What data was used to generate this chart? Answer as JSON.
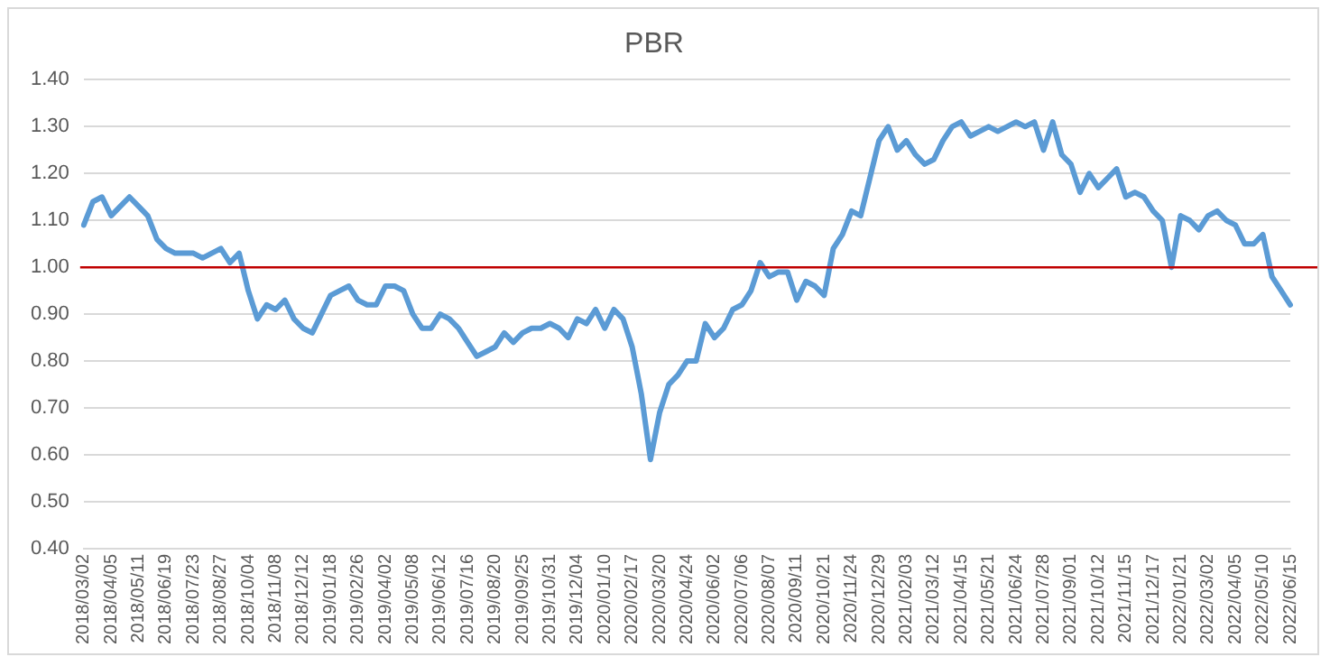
{
  "chart_data": {
    "type": "line",
    "title": "PBR",
    "categories": [
      "2018/03/02",
      null,
      null,
      "2018/04/05",
      null,
      null,
      "2018/05/11",
      null,
      null,
      "2018/06/19",
      null,
      null,
      "2018/07/23",
      null,
      null,
      "2018/08/27",
      null,
      null,
      "2018/10/04",
      null,
      null,
      "2018/11/08",
      null,
      null,
      "2018/12/12",
      null,
      null,
      "2019/01/18",
      null,
      null,
      "2019/02/26",
      null,
      null,
      "2019/04/02",
      null,
      null,
      "2019/05/08",
      null,
      null,
      "2019/06/12",
      null,
      null,
      "2019/07/16",
      null,
      null,
      "2019/08/20",
      null,
      null,
      "2019/09/25",
      null,
      null,
      "2019/10/31",
      null,
      null,
      "2019/12/04",
      null,
      null,
      "2020/01/10",
      null,
      null,
      "2020/02/17",
      null,
      null,
      "2020/03/20",
      null,
      null,
      "2020/04/24",
      null,
      null,
      "2020/06/02",
      null,
      null,
      "2020/07/06",
      null,
      null,
      "2020/08/07",
      null,
      null,
      "2020/09/11",
      null,
      null,
      "2020/10/21",
      null,
      null,
      "2020/11/24",
      null,
      null,
      "2020/12/29",
      null,
      null,
      "2021/02/03",
      null,
      null,
      "2021/03/12",
      null,
      null,
      "2021/04/15",
      null,
      null,
      "2021/05/21",
      null,
      null,
      "2021/06/24",
      null,
      null,
      "2021/07/28",
      null,
      null,
      "2021/09/01",
      null,
      null,
      "2021/10/12",
      null,
      null,
      "2021/11/15",
      null,
      null,
      "2021/12/17",
      null,
      null,
      "2022/01/21",
      null,
      null,
      "2022/03/02",
      null,
      null,
      "2022/04/05",
      null,
      null,
      "2022/05/10",
      null,
      null,
      "2022/06/15"
    ],
    "series": [
      {
        "color": "#5b9bd5",
        "values": [
          1.09,
          1.14,
          1.15,
          1.11,
          1.13,
          1.15,
          1.13,
          1.11,
          1.06,
          1.04,
          1.03,
          1.03,
          1.03,
          1.02,
          1.03,
          1.04,
          1.01,
          1.03,
          0.95,
          0.89,
          0.92,
          0.91,
          0.93,
          0.89,
          0.87,
          0.86,
          0.9,
          0.94,
          0.95,
          0.96,
          0.93,
          0.92,
          0.92,
          0.96,
          0.96,
          0.95,
          0.9,
          0.87,
          0.87,
          0.9,
          0.89,
          0.87,
          0.84,
          0.81,
          0.82,
          0.83,
          0.86,
          0.84,
          0.86,
          0.87,
          0.87,
          0.88,
          0.87,
          0.85,
          0.89,
          0.88,
          0.91,
          0.87,
          0.91,
          0.89,
          0.83,
          0.73,
          0.59,
          0.69,
          0.75,
          0.77,
          0.8,
          0.8,
          0.88,
          0.85,
          0.87,
          0.91,
          0.92,
          0.95,
          1.01,
          0.98,
          0.99,
          0.99,
          0.93,
          0.97,
          0.96,
          0.94,
          1.04,
          1.07,
          1.12,
          1.11,
          1.19,
          1.27,
          1.3,
          1.25,
          1.27,
          1.24,
          1.22,
          1.23,
          1.27,
          1.3,
          1.31,
          1.28,
          1.29,
          1.3,
          1.29,
          1.3,
          1.31,
          1.3,
          1.31,
          1.25,
          1.31,
          1.24,
          1.22,
          1.16,
          1.2,
          1.17,
          1.19,
          1.21,
          1.15,
          1.16,
          1.15,
          1.12,
          1.1,
          1.0,
          1.11,
          1.1,
          1.08,
          1.11,
          1.12,
          1.1,
          1.09,
          1.05,
          1.05,
          1.07,
          0.98,
          0.95,
          0.92
        ]
      }
    ],
    "ylim": [
      0.4,
      1.4
    ],
    "yticks": [
      {
        "value": 0.4,
        "label": "0.40"
      },
      {
        "value": 0.5,
        "label": "0.50"
      },
      {
        "value": 0.6,
        "label": "0.60"
      },
      {
        "value": 0.7,
        "label": "0.70"
      },
      {
        "value": 0.8,
        "label": "0.80"
      },
      {
        "value": 0.9,
        "label": "0.90"
      },
      {
        "value": 1.0,
        "label": "1.00"
      },
      {
        "value": 1.1,
        "label": "1.10"
      },
      {
        "value": 1.2,
        "label": "1.20"
      },
      {
        "value": 1.3,
        "label": "1.30"
      },
      {
        "value": 1.4,
        "label": "1.40"
      }
    ],
    "ref_lines": [
      {
        "axis": "y",
        "value": 1.0,
        "color": "#c00000"
      }
    ],
    "grid": "y",
    "legend": false,
    "marker": "none",
    "line_style": "solid"
  }
}
